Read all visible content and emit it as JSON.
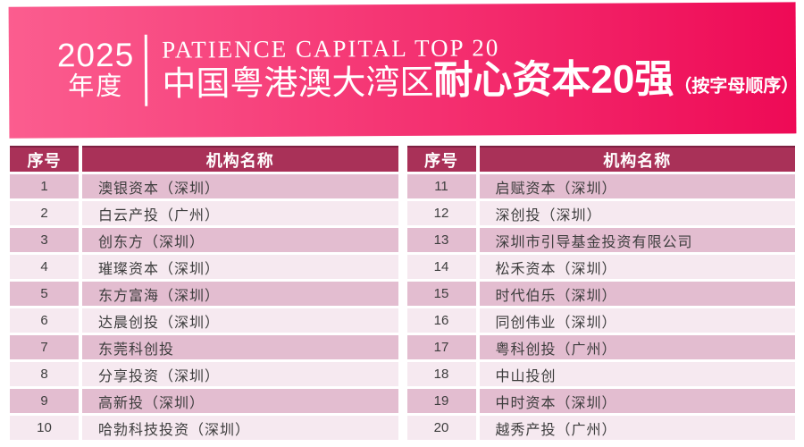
{
  "banner": {
    "year": "2025",
    "year_suffix": "年度",
    "title_en": "PATIENCE CAPITAL TOP 20",
    "title_cn_prefix": "中国粤港澳大湾区",
    "title_cn_bold": "耐心资本20强",
    "title_cn_note": "（按字母顺序）"
  },
  "colors": {
    "gradient_left": "#fb5d8f",
    "gradient_right": "#ee0a56",
    "header_bg": "#a93158",
    "header_border": "#7e2042",
    "row_odd": "#e3bdd0",
    "row_even": "#f6e9f0"
  },
  "chart_data": {
    "type": "table",
    "title": "2025年度 中国粤港澳大湾区耐心资本20强（按字母顺序）",
    "columns": [
      "序号",
      "机构名称"
    ],
    "rows": [
      [
        "1",
        "澳银资本（深圳）"
      ],
      [
        "2",
        "白云产投（广州）"
      ],
      [
        "3",
        "创东方（深圳）"
      ],
      [
        "4",
        "璀璨资本（深圳）"
      ],
      [
        "5",
        "东方富海（深圳）"
      ],
      [
        "6",
        "达晨创投（深圳）"
      ],
      [
        "7",
        "东莞科创投"
      ],
      [
        "8",
        "分享投资（深圳）"
      ],
      [
        "9",
        "高新投（深圳）"
      ],
      [
        "10",
        "哈勃科技投资（深圳）"
      ],
      [
        "11",
        "启赋资本（深圳）"
      ],
      [
        "12",
        "深创投（深圳）"
      ],
      [
        "13",
        "深圳市引导基金投资有限公司"
      ],
      [
        "14",
        "松禾资本（深圳）"
      ],
      [
        "15",
        "时代伯乐（深圳）"
      ],
      [
        "16",
        "同创伟业（深圳）"
      ],
      [
        "17",
        "粤科创投（广州）"
      ],
      [
        "18",
        "中山投创"
      ],
      [
        "19",
        "中时资本（深圳）"
      ],
      [
        "20",
        "越秀产投（广州）"
      ]
    ]
  }
}
